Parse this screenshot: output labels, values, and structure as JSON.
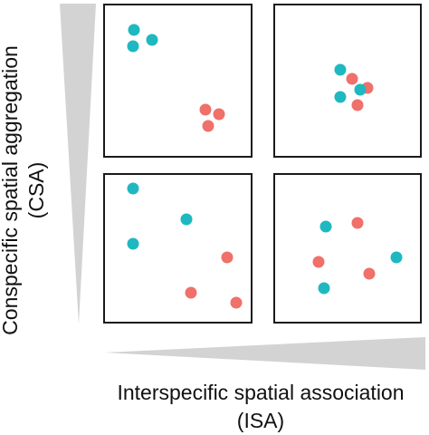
{
  "y_axis": {
    "label_line1": "Conspecific spatial aggregation",
    "label_line2": "(CSA)",
    "gradient_color": "#d3d3d3"
  },
  "x_axis": {
    "label_line1": "Interspecific spatial association",
    "label_line2": "(ISA)",
    "gradient_color": "#d3d3d3"
  },
  "colors": {
    "teal": "#1fb8c1",
    "salmon": "#f0706a"
  },
  "panels": [
    {
      "id": "top-left",
      "points": [
        {
          "species": "teal",
          "x": 0.2,
          "y": 0.16
        },
        {
          "species": "teal",
          "x": 0.32,
          "y": 0.23
        },
        {
          "species": "teal",
          "x": 0.19,
          "y": 0.27
        },
        {
          "species": "salmon",
          "x": 0.69,
          "y": 0.69
        },
        {
          "species": "salmon",
          "x": 0.78,
          "y": 0.72
        },
        {
          "species": "salmon",
          "x": 0.71,
          "y": 0.8
        }
      ]
    },
    {
      "id": "top-right",
      "points": [
        {
          "species": "teal",
          "x": 0.45,
          "y": 0.43
        },
        {
          "species": "salmon",
          "x": 0.53,
          "y": 0.49
        },
        {
          "species": "salmon",
          "x": 0.64,
          "y": 0.55
        },
        {
          "species": "teal",
          "x": 0.59,
          "y": 0.56
        },
        {
          "species": "teal",
          "x": 0.45,
          "y": 0.61
        },
        {
          "species": "salmon",
          "x": 0.57,
          "y": 0.66
        }
      ]
    },
    {
      "id": "bottom-left",
      "points": [
        {
          "species": "teal",
          "x": 0.19,
          "y": 0.09
        },
        {
          "species": "teal",
          "x": 0.56,
          "y": 0.3
        },
        {
          "species": "teal",
          "x": 0.19,
          "y": 0.47
        },
        {
          "species": "salmon",
          "x": 0.84,
          "y": 0.56
        },
        {
          "species": "salmon",
          "x": 0.59,
          "y": 0.8
        },
        {
          "species": "salmon",
          "x": 0.9,
          "y": 0.87
        }
      ]
    },
    {
      "id": "bottom-right",
      "points": [
        {
          "species": "teal",
          "x": 0.35,
          "y": 0.35
        },
        {
          "species": "salmon",
          "x": 0.57,
          "y": 0.33
        },
        {
          "species": "salmon",
          "x": 0.3,
          "y": 0.59
        },
        {
          "species": "teal",
          "x": 0.84,
          "y": 0.56
        },
        {
          "species": "salmon",
          "x": 0.65,
          "y": 0.67
        },
        {
          "species": "teal",
          "x": 0.34,
          "y": 0.77
        }
      ]
    }
  ]
}
